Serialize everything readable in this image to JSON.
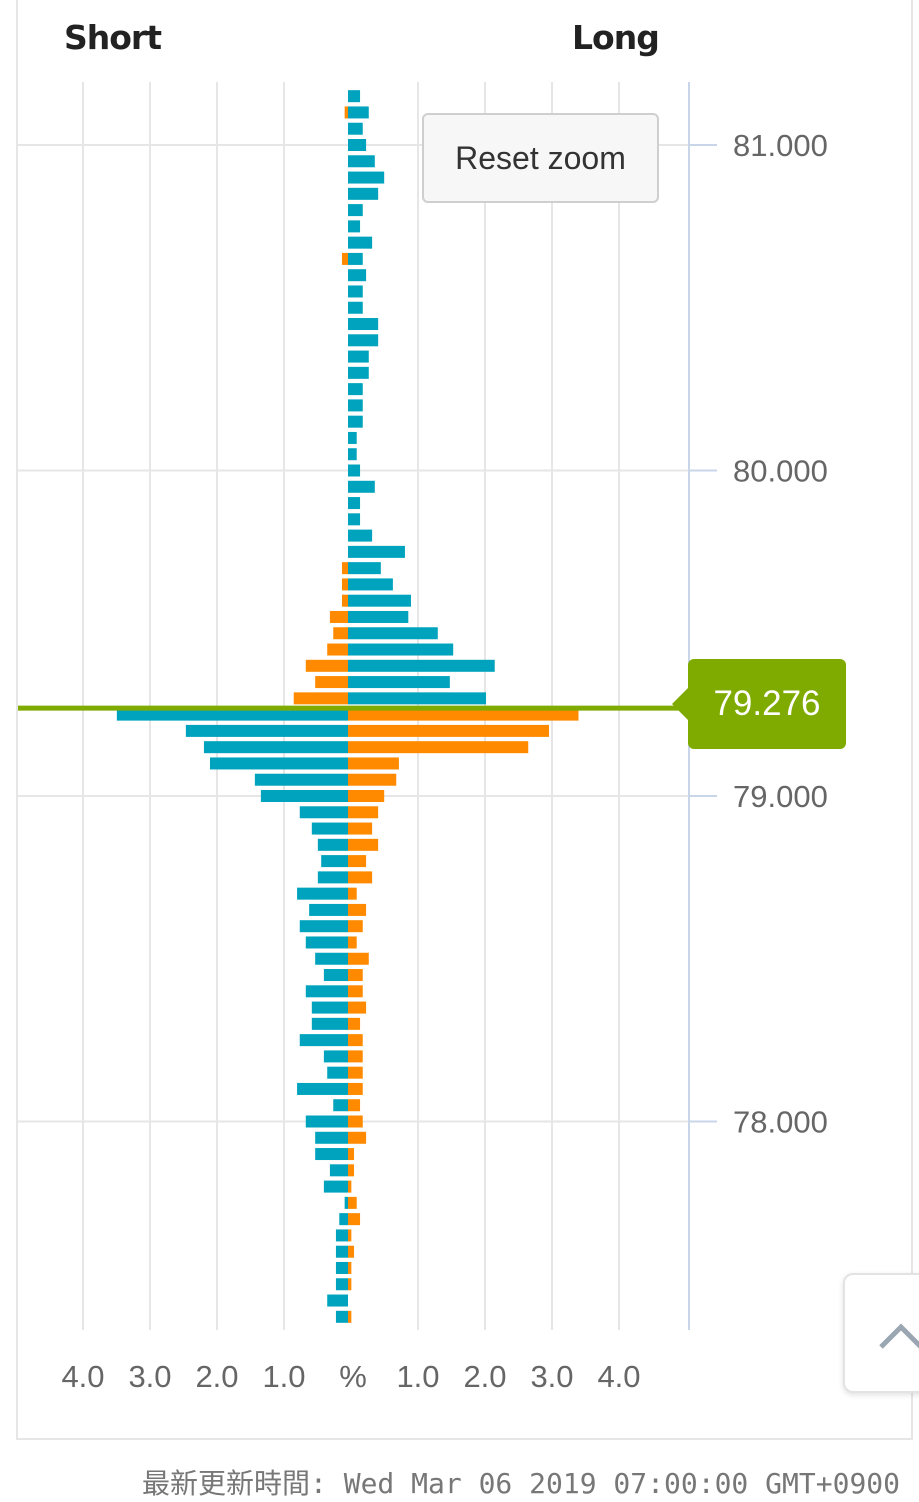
{
  "header": {
    "left_label": "Short",
    "right_label": "Long"
  },
  "reset_zoom_label": "Reset zoom",
  "current_price_label": "79.276",
  "footer": {
    "updated": "最新更新時間: Wed Mar 06 2019 07:00:00 GMT+0900"
  },
  "colors": {
    "blue": "#00a3bd",
    "orange": "#ff8a00",
    "price_line": "#7fab00",
    "grid": "#e6e6e6",
    "axis": "#c9d6ea"
  },
  "chart_data": {
    "type": "bar",
    "orientation": "horizontal-butterfly",
    "current_price": 79.276,
    "y_ticks": [
      "81.000",
      "80.000",
      "79.000",
      "78.000"
    ],
    "y_tick_values": [
      81,
      80,
      79,
      78
    ],
    "x_tick_labels": [
      "4.0",
      "3.0",
      "2.0",
      "1.0",
      "%",
      "1.0",
      "2.0",
      "3.0",
      "4.0"
    ],
    "x_unit": "%",
    "xlim": [
      -4,
      4
    ],
    "ylim": [
      77.4,
      81.15
    ],
    "grid": true,
    "color_rule": "above current price: left orange, right blue; below: left blue, right orange",
    "price_levels": [
      81.15,
      81.1,
      81.05,
      81.0,
      80.95,
      80.9,
      80.85,
      80.8,
      80.75,
      80.7,
      80.65,
      80.6,
      80.55,
      80.5,
      80.45,
      80.4,
      80.35,
      80.3,
      80.25,
      80.2,
      80.15,
      80.1,
      80.05,
      80.0,
      79.95,
      79.9,
      79.85,
      79.8,
      79.75,
      79.7,
      79.65,
      79.6,
      79.55,
      79.5,
      79.45,
      79.4,
      79.35,
      79.3,
      79.25,
      79.2,
      79.15,
      79.1,
      79.05,
      79.0,
      78.95,
      78.9,
      78.85,
      78.8,
      78.75,
      78.7,
      78.65,
      78.6,
      78.55,
      78.5,
      78.45,
      78.4,
      78.35,
      78.3,
      78.25,
      78.2,
      78.15,
      78.1,
      78.05,
      78.0,
      77.95,
      77.9,
      77.85,
      77.8,
      77.75,
      77.7,
      77.65,
      77.6,
      77.55,
      77.5,
      77.45,
      77.4
    ],
    "short": [
      0,
      0.05,
      0,
      0,
      0,
      0,
      0,
      0,
      0,
      0,
      0.09,
      0,
      0,
      0,
      0,
      0,
      0,
      0,
      0,
      0,
      0,
      0,
      0,
      0,
      0,
      0,
      0,
      0,
      0,
      0.09,
      0.09,
      0.09,
      0.27,
      0.22,
      0.31,
      0.63,
      0.49,
      0.81,
      3.45,
      2.42,
      2.15,
      2.06,
      1.39,
      1.3,
      0.72,
      0.54,
      0.45,
      0.4,
      0.45,
      0.76,
      0.58,
      0.72,
      0.63,
      0.49,
      0.36,
      0.63,
      0.54,
      0.54,
      0.72,
      0.36,
      0.31,
      0.76,
      0.22,
      0.63,
      0.49,
      0.49,
      0.27,
      0.36,
      0.05,
      0.13,
      0.18,
      0.18,
      0.18,
      0.18,
      0.31,
      0.18
    ],
    "long": [
      0.18,
      0.31,
      0.22,
      0.27,
      0.4,
      0.54,
      0.45,
      0.22,
      0.18,
      0.36,
      0.22,
      0.27,
      0.22,
      0.22,
      0.45,
      0.45,
      0.31,
      0.31,
      0.22,
      0.22,
      0.22,
      0.13,
      0.13,
      0.18,
      0.4,
      0.18,
      0.18,
      0.36,
      0.85,
      0.49,
      0.67,
      0.94,
      0.9,
      1.34,
      1.57,
      2.19,
      1.52,
      2.06,
      3.44,
      3.0,
      2.69,
      0.76,
      0.72,
      0.54,
      0.45,
      0.36,
      0.45,
      0.27,
      0.36,
      0.13,
      0.27,
      0.22,
      0.13,
      0.31,
      0.22,
      0.22,
      0.27,
      0.18,
      0.22,
      0.22,
      0.22,
      0.22,
      0.18,
      0.22,
      0.27,
      0.09,
      0.09,
      0.05,
      0.13,
      0.18,
      0.05,
      0.09,
      0.05,
      0.05,
      0,
      0.05
    ]
  }
}
